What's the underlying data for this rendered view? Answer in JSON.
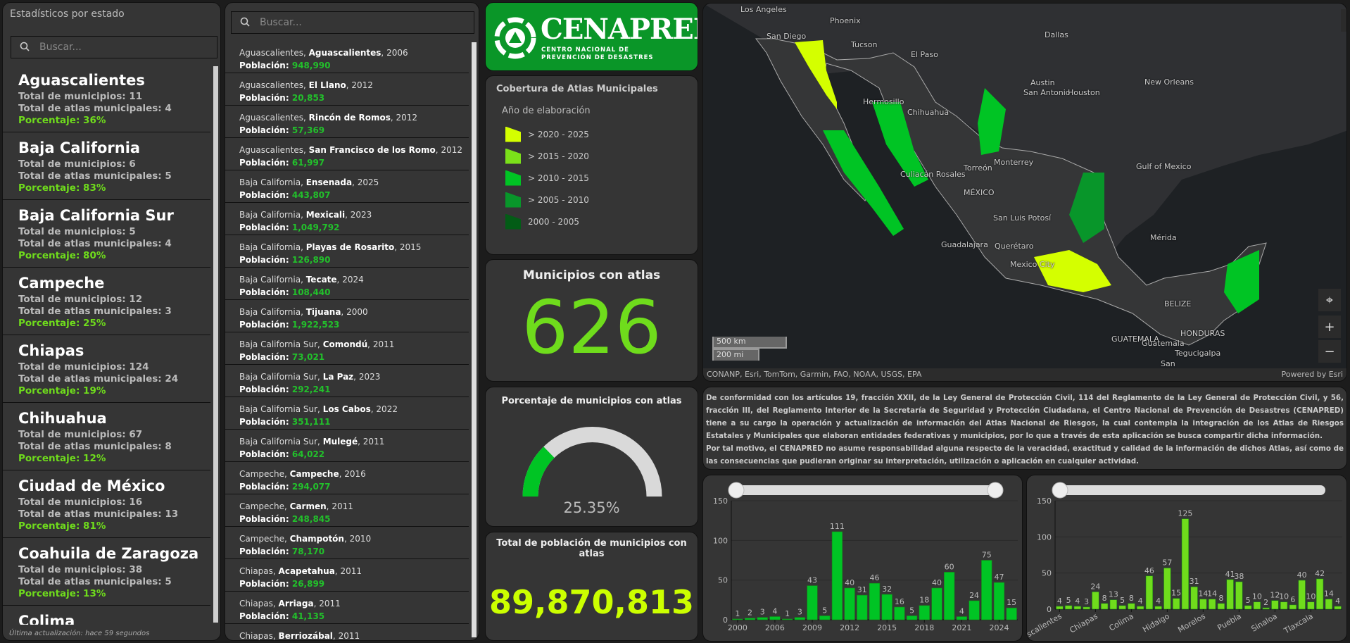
{
  "states_panel": {
    "title": "Estadísticos por estado",
    "search_placeholder": "Buscar...",
    "footer": "Última actualización: hace 59 segundos",
    "mun_label": "Total de municipios: ",
    "atlas_label": "Total de atlas municipales: ",
    "pct_label": "Porcentaje: ",
    "items": [
      {
        "name": "Aguascalientes",
        "municipios": "11",
        "atlas": "4",
        "pct": "36%"
      },
      {
        "name": "Baja California",
        "municipios": "6",
        "atlas": "5",
        "pct": "83%"
      },
      {
        "name": "Baja California Sur",
        "municipios": "5",
        "atlas": "4",
        "pct": "80%"
      },
      {
        "name": "Campeche",
        "municipios": "12",
        "atlas": "3",
        "pct": "25%"
      },
      {
        "name": "Chiapas",
        "municipios": "124",
        "atlas": "24",
        "pct": "19%"
      },
      {
        "name": "Chihuahua",
        "municipios": "67",
        "atlas": "8",
        "pct": "12%"
      },
      {
        "name": "Ciudad de México",
        "municipios": "16",
        "atlas": "13",
        "pct": "81%"
      },
      {
        "name": "Coahuila de Zaragoza",
        "municipios": "38",
        "atlas": "5",
        "pct": "13%"
      },
      {
        "name": "Colima"
      }
    ]
  },
  "muni_panel": {
    "search_placeholder": "Buscar...",
    "pop_label": "Población: ",
    "items": [
      {
        "state": "Aguascalientes",
        "municipio": "Aguascalientes",
        "year": "2006",
        "pop": "948,990"
      },
      {
        "state": "Aguascalientes",
        "municipio": "El Llano",
        "year": "2012",
        "pop": "20,853"
      },
      {
        "state": "Aguascalientes",
        "municipio": "Rincón de Romos",
        "year": "2012",
        "pop": "57,369"
      },
      {
        "state": "Aguascalientes",
        "municipio": "San Francisco de los Romo",
        "year": "2012",
        "pop": "61,997"
      },
      {
        "state": "Baja California",
        "municipio": "Ensenada",
        "year": "2025",
        "pop": "443,807"
      },
      {
        "state": "Baja California",
        "municipio": "Mexicali",
        "year": "2023",
        "pop": "1,049,792"
      },
      {
        "state": "Baja California",
        "municipio": "Playas de Rosarito",
        "year": "2015",
        "pop": "126,890"
      },
      {
        "state": "Baja California",
        "municipio": "Tecate",
        "year": "2024",
        "pop": "108,440"
      },
      {
        "state": "Baja California",
        "municipio": "Tijuana",
        "year": "2000",
        "pop": "1,922,523"
      },
      {
        "state": "Baja California Sur",
        "municipio": "Comondú",
        "year": "2011",
        "pop": "73,021"
      },
      {
        "state": "Baja California Sur",
        "municipio": "La Paz",
        "year": "2023",
        "pop": "292,241"
      },
      {
        "state": "Baja California Sur",
        "municipio": "Los Cabos",
        "year": "2022",
        "pop": "351,111"
      },
      {
        "state": "Baja California Sur",
        "municipio": "Mulegé",
        "year": "2011",
        "pop": "64,022"
      },
      {
        "state": "Campeche",
        "municipio": "Campeche",
        "year": "2016",
        "pop": "294,077"
      },
      {
        "state": "Campeche",
        "municipio": "Carmen",
        "year": "2011",
        "pop": "248,845"
      },
      {
        "state": "Campeche",
        "municipio": "Champotón",
        "year": "2010",
        "pop": "78,170"
      },
      {
        "state": "Chiapas",
        "municipio": "Acapetahua",
        "year": "2011",
        "pop": "26,899"
      },
      {
        "state": "Chiapas",
        "municipio": "Arriaga",
        "year": "2011",
        "pop": "41,135"
      },
      {
        "state": "Chiapas",
        "municipio": "Berriozábal",
        "year": "2011"
      }
    ]
  },
  "logo": {
    "name": "CENAPRED",
    "line1": "CENTRO NACIONAL DE",
    "line2": "PREVENCIÓN DE DESASTRES",
    "bg": "#0a9628"
  },
  "legend": {
    "title": "Cobertura de Atlas Municipales",
    "subtitle": "Año de elaboración",
    "items": [
      {
        "label": "> 2020 - 2025",
        "color": "#d4ff00"
      },
      {
        "label": "> 2015 - 2020",
        "color": "#7be01a"
      },
      {
        "label": "> 2010 - 2015",
        "color": "#00c424"
      },
      {
        "label": "> 2005 - 2010",
        "color": "#08962a"
      },
      {
        "label": "2000 - 2005",
        "color": "#035c16"
      }
    ]
  },
  "kpi_municipios": {
    "title": "Municipios con atlas",
    "value": "626",
    "color": "#6fdc1c"
  },
  "gauge": {
    "title": "Porcentaje de municipios con atlas",
    "value": 25.35,
    "label": "25.35%",
    "color": "#00c424",
    "track": "#d9d9d9"
  },
  "kpi_poblacion": {
    "title": "Total de población de municipios con atlas",
    "value": "89,870,813",
    "color": "#ccff00"
  },
  "map": {
    "labels": [
      "Los Angeles",
      "Phoenix",
      "San Diego",
      "Tucson",
      "Dallas",
      "El Paso",
      "Hermosillo",
      "Chihuahua",
      "Austin",
      "San Antonio",
      "Houston",
      "New Orleans",
      "Torreón",
      "Monterrey",
      "Culiacán Rosales",
      "MÉXICO",
      "Gulf of Mexico",
      "San Luis Potosí",
      "Guadalajara",
      "Querétaro",
      "Mexico City",
      "Mérida",
      "BELIZE",
      "GUATEMALA",
      "Guatemala",
      "HONDURAS",
      "Tegucigalpa",
      "San"
    ],
    "scale_km": "500 km",
    "scale_mi": "200 mi",
    "attribution": "CONANP, Esri, TomTom, Garmin, FAO, NOAA, USGS, EPA",
    "powered": "Powered by Esri"
  },
  "disclaimer": {
    "p1": "De conformidad con los artículos 19, fracción XXII, de la Ley General de Protección Civil,  114 del Reglamento de la Ley General de Protección Civil, y 56, fracción III, del Reglamento Interior de la Secretaría de Seguridad y Protección Ciudadana, el Centro Nacional de Prevención de Desastres (CENAPRED) tiene a su cargo la operación y actualización de información del Atlas Nacional de Riesgos, la cual contempla la integración de los Atlas de Riesgos Estatales y Municipales que elaboran entidades federativas y municipios, por lo que a través de esta aplicación se busca compartir dicha información.",
    "p2": "Por tal motivo, el CENAPRED no asume responsabilidad alguna respecto de la veracidad, exactitud y calidad de la información de dichos Atlas, así como de las consecuencias que pudieran originar su interpretación, utilización o aplicación en cualquier actividad."
  },
  "chart_data": [
    {
      "type": "bar",
      "color": "#00c424",
      "ylim": [
        0,
        150
      ],
      "yticks": [
        0,
        50,
        100,
        150
      ],
      "grid": true,
      "categories": [
        "2000",
        "2003",
        "2005",
        "2006",
        "2007",
        "2008",
        "2009",
        "2010",
        "2011",
        "2012",
        "2013",
        "2014",
        "2015",
        "2016",
        "2017",
        "2018",
        "2019",
        "2020",
        "2021",
        "2022",
        "2023",
        "2024",
        "2025"
      ],
      "tick_labels": [
        "2000",
        "2006",
        "2009",
        "2012",
        "2015",
        "2018",
        "2021",
        "2024"
      ],
      "values": [
        1,
        2,
        3,
        4,
        1,
        3,
        43,
        5,
        111,
        40,
        31,
        46,
        32,
        16,
        5,
        18,
        40,
        60,
        4,
        24,
        75,
        47,
        15
      ]
    },
    {
      "type": "bar",
      "color": "#6fdc1c",
      "ylim": [
        0,
        150
      ],
      "yticks": [
        0,
        50,
        100,
        150
      ],
      "grid": true,
      "categories": [
        "Aguascalientes",
        "Baja California",
        "Baja California Sur",
        "Campeche",
        "Chiapas",
        "Chihuahua",
        "Ciudad de México",
        "Coahuila de Zaragoza",
        "Colima",
        "Durango",
        "Guanajuato",
        "Guerrero",
        "Hidalgo",
        "Jalisco",
        "México",
        "Michoacán",
        "Morelos",
        "Nayarit",
        "Nuevo León",
        "Oaxaca",
        "Puebla",
        "Querétaro",
        "Quintana Roo",
        "San Luis Potosí",
        "Sinaloa",
        "Sonora",
        "Tabasco",
        "Tamaulipas",
        "Tlaxcala",
        "Veracruz",
        "Yucatán",
        "Zacatecas"
      ],
      "tick_labels": [
        "Aguascalientes",
        "Chiapas",
        "Colima",
        "Hidalgo",
        "Morelos",
        "Puebla",
        "Sinaloa",
        "Tlaxcala"
      ],
      "values": [
        4,
        5,
        4,
        3,
        24,
        8,
        13,
        5,
        8,
        4,
        46,
        4,
        57,
        15,
        125,
        31,
        14,
        14,
        8,
        41,
        38,
        5,
        10,
        2,
        12,
        10,
        6,
        40,
        10,
        42,
        14,
        4
      ]
    }
  ]
}
